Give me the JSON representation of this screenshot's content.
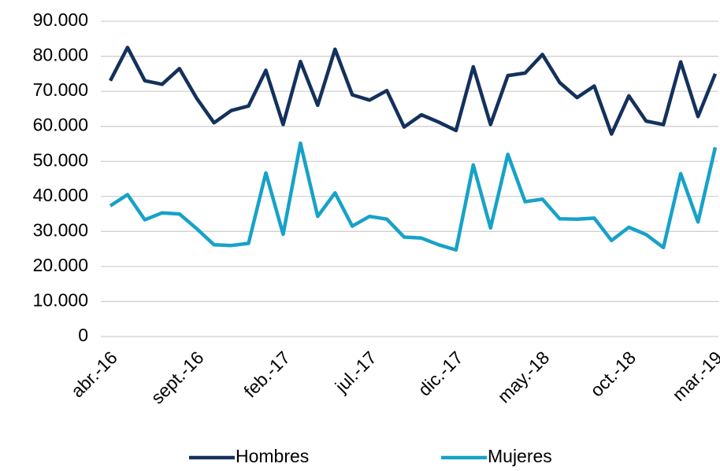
{
  "chart_data": {
    "type": "line",
    "categories": [
      "abr.-16",
      null,
      null,
      null,
      null,
      "sept.-16",
      null,
      null,
      null,
      null,
      "feb.-17",
      null,
      null,
      null,
      null,
      "jul.-17",
      null,
      null,
      null,
      null,
      "dic.-17",
      null,
      null,
      null,
      null,
      "may.-18",
      null,
      null,
      null,
      null,
      "oct.-18",
      null,
      null,
      null,
      null,
      "mar.-19"
    ],
    "series": [
      {
        "name": "Hombres",
        "color": "#13315c",
        "values": [
          73000,
          82500,
          73000,
          72000,
          76500,
          68000,
          61000,
          64500,
          65800,
          76000,
          60500,
          78500,
          66000,
          82000,
          69000,
          67500,
          70200,
          59800,
          63300,
          61200,
          58800,
          77000,
          60500,
          74500,
          75200,
          80500,
          72500,
          68200,
          71500,
          57800,
          68700,
          61500,
          60500,
          78400,
          62800,
          75000
        ]
      },
      {
        "name": "Mujeres",
        "color": "#17a2c8",
        "values": [
          37300,
          40500,
          33300,
          35300,
          35000,
          30800,
          26200,
          26000,
          26600,
          46700,
          29200,
          55200,
          34300,
          41000,
          31500,
          34300,
          33500,
          28400,
          28100,
          26200,
          24700,
          49000,
          31000,
          52000,
          38500,
          39200,
          33600,
          33500,
          33800,
          27400,
          31200,
          29100,
          25400,
          46500,
          32700,
          54000
        ]
      }
    ],
    "ylim": [
      0,
      90000
    ],
    "yticks": [
      0,
      {
        "value": 10000,
        "label": "10.000"
      },
      {
        "value": 20000,
        "label": "20.000"
      },
      {
        "value": 30000,
        "label": "30.000"
      },
      {
        "value": 40000,
        "label": "40.000"
      },
      {
        "value": 50000,
        "label": "50.000"
      },
      {
        "value": 60000,
        "label": "60.000"
      },
      {
        "value": 70000,
        "label": "70.000"
      },
      {
        "value": 80000,
        "label": "80.000"
      },
      {
        "value": 90000,
        "label": "90.000"
      }
    ],
    "grid": true,
    "legend": "bottom"
  }
}
